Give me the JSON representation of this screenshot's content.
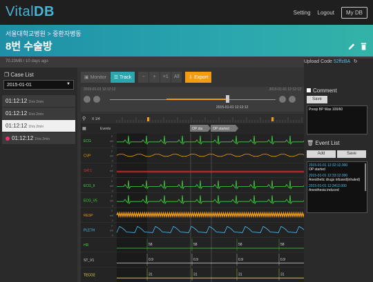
{
  "app": {
    "logo_a": "Vital",
    "logo_b": "DB"
  },
  "nav": {
    "setting": "Setting",
    "logout": "Logout",
    "mydb": "My DB"
  },
  "banner": {
    "hospital": "서울대학교병원",
    "sep": ">",
    "ward": "중환자병동",
    "room": "8번 수술방"
  },
  "info": {
    "meta": "70.23MB / 10 days ago",
    "upload_label": "Upload Code",
    "upload_code": "52ffzBA"
  },
  "sidebar": {
    "title": "Case List",
    "date": "2015-01-01",
    "cases": [
      {
        "time": "01:12:12",
        "dur": "1hrs 2min",
        "selected": false,
        "live": false
      },
      {
        "time": "01:12:12",
        "dur": "1hrs 2min",
        "selected": false,
        "live": false
      },
      {
        "time": "01:12:12",
        "dur": "1hrs 2min",
        "selected": true,
        "live": false
      },
      {
        "time": "01:12:12",
        "dur": "1hrs 2min",
        "selected": false,
        "live": true
      }
    ]
  },
  "toolbar": {
    "monitor": "Monitor",
    "track": "Track",
    "minus": "−",
    "plus": "+",
    "x1": "×1",
    "all": "All",
    "export": "Export"
  },
  "timeline": {
    "start": "2015-01-01 12:12:12",
    "end": "2015-01-01 12:12:12",
    "current": "2015-01-01 12:12:12"
  },
  "chart": {
    "zoom": "X 1/4",
    "events_label": "Events",
    "event_tags": [
      "OP sta",
      "OP started"
    ],
    "tracks": [
      {
        "name": "ECG",
        "color": "#3ddc3d",
        "unit": "mV"
      },
      {
        "name": "CVP",
        "color": "#f39c12",
        "unit": "mV"
      },
      {
        "name": "SAT1",
        "color": "#e23030",
        "unit": "mV"
      },
      {
        "name": "ECG_II",
        "color": "#3ddc3d",
        "unit": "mV"
      },
      {
        "name": "ECG_V5",
        "color": "#3ddc3d",
        "unit": "mV"
      },
      {
        "name": "RESP",
        "color": "#f39c12",
        "unit": "mV"
      },
      {
        "name": "PLETH",
        "color": "#4fc3f7",
        "unit": "mV"
      },
      {
        "name": "HR",
        "color": "#3ddc3d",
        "unit": ""
      },
      {
        "name": "ST_V1",
        "color": "#dddddd",
        "unit": ""
      },
      {
        "name": "TECO2",
        "color": "#f1e04a",
        "unit": ""
      }
    ],
    "hr_value": "58",
    "st_value": "0.9",
    "teco2_value": "31"
  },
  "comment": {
    "title": "Comment",
    "save": "Save",
    "text": "Preop BP Was 100/60"
  },
  "events": {
    "title": "Event List",
    "add": "Add",
    "save": "Save",
    "items": [
      {
        "time": "2015-01-01 12:32:12.000",
        "desc": "OP started"
      },
      {
        "time": "2015-01-01 12:33:12.000",
        "desc": "Anesthetic drugs infused(inhaled)"
      },
      {
        "time": "2015-01-01 12:3412.000",
        "desc": "Anesthesia induced"
      }
    ]
  }
}
